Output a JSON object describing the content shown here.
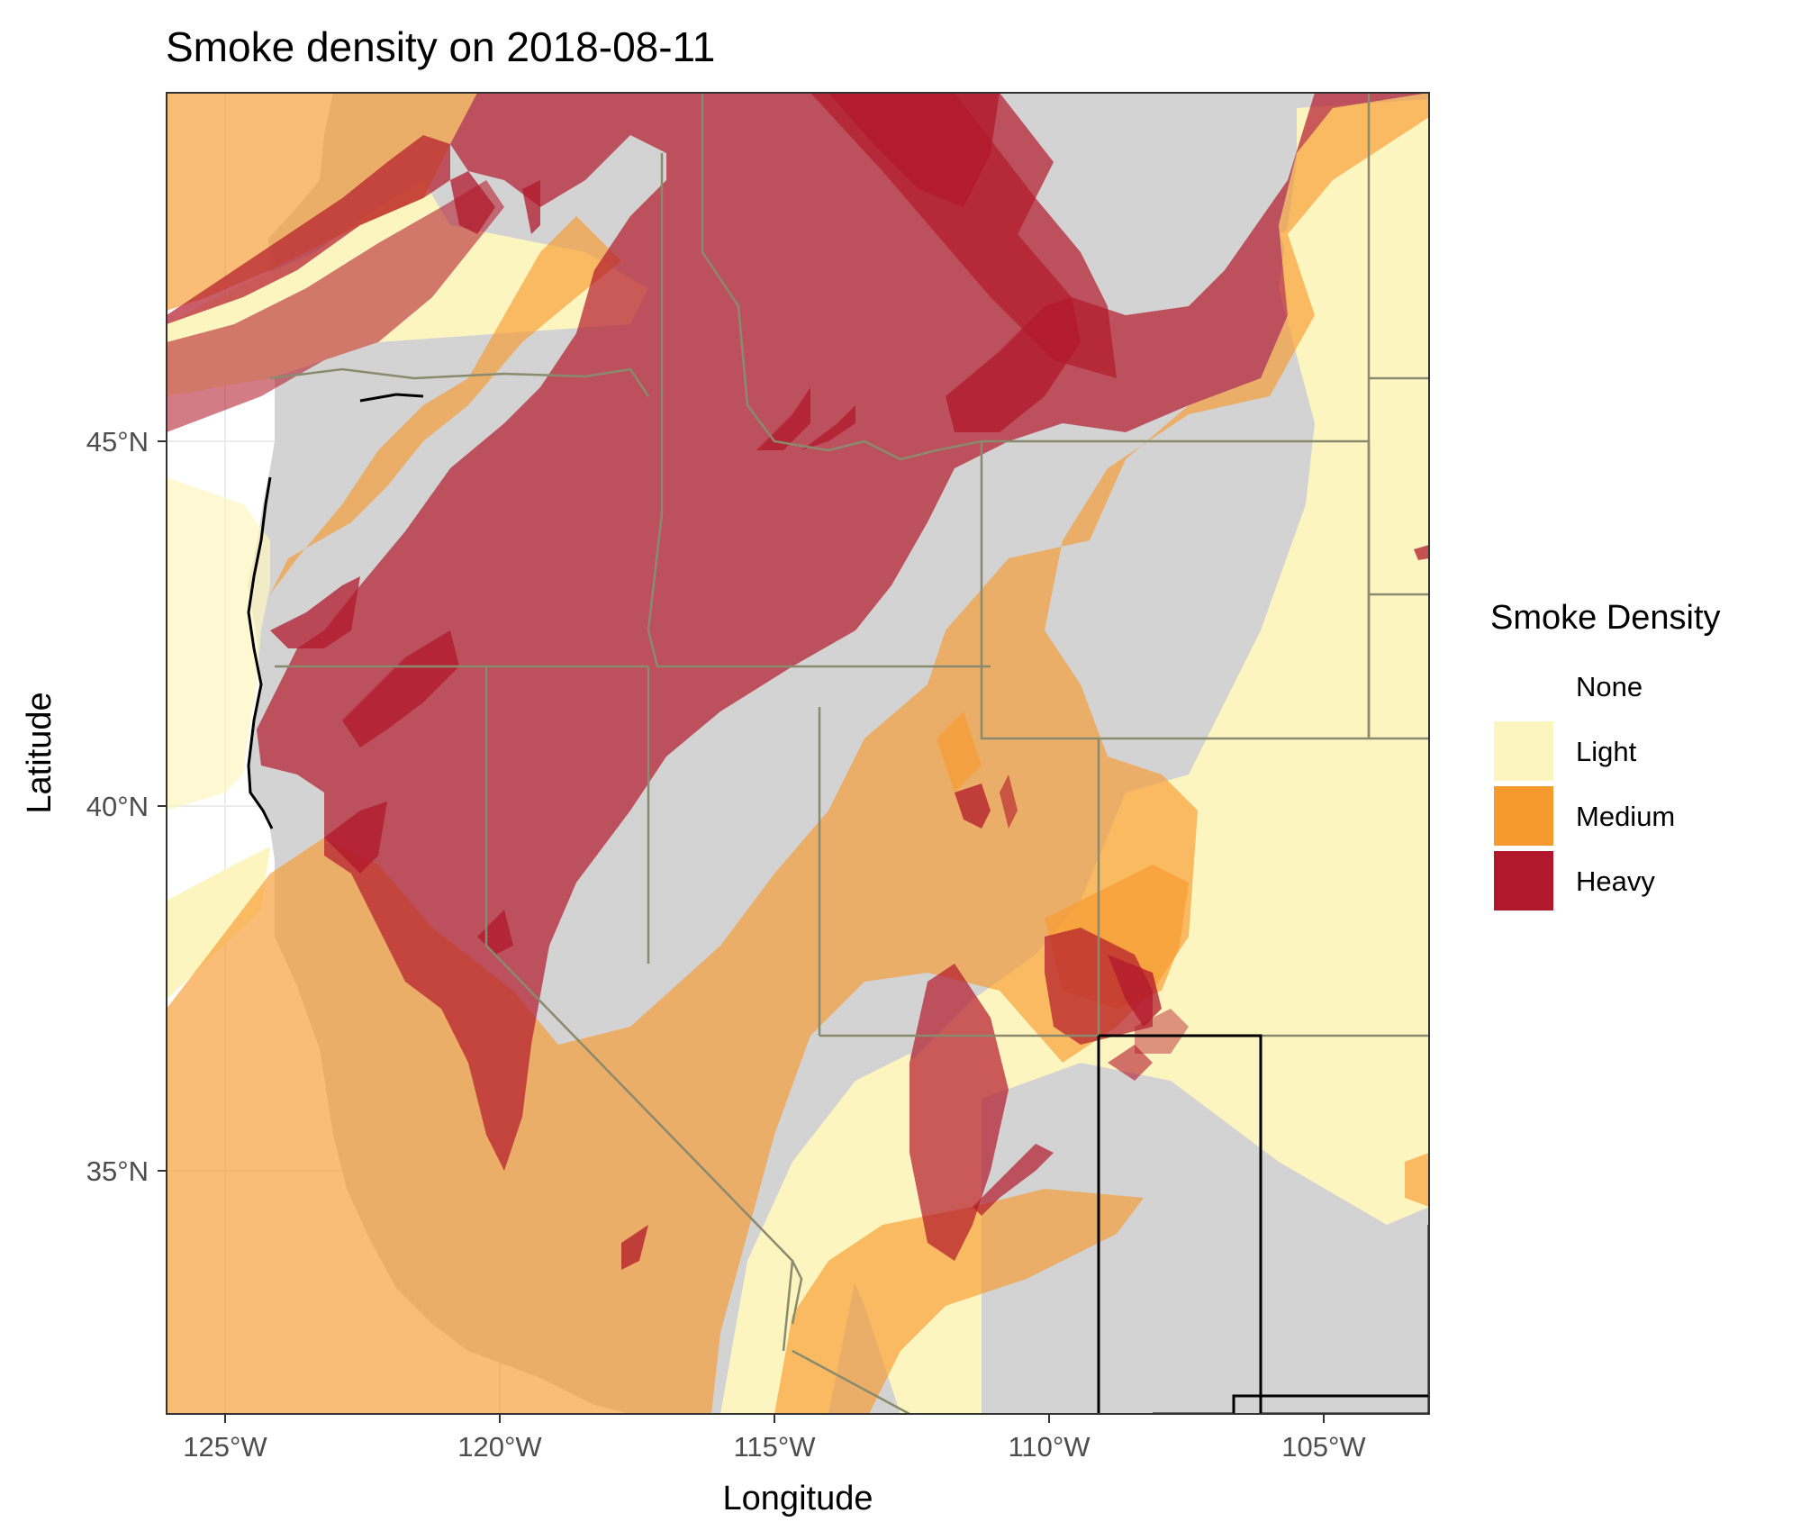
{
  "title": "Smoke density on 2018-08-11",
  "xlabel": "Longitude",
  "ylabel": "Latitude",
  "x_ticks": [
    "125°W",
    "120°W",
    "115°W",
    "110°W",
    "105°W"
  ],
  "y_ticks": [
    "45°N",
    "40°N",
    "35°N"
  ],
  "legend": {
    "title": "Smoke Density",
    "items": [
      {
        "label": "None",
        "color": "#ffffff"
      },
      {
        "label": "Light",
        "color": "#fdf5c0"
      },
      {
        "label": "Medium",
        "color": "#f79a2e"
      },
      {
        "label": "Heavy",
        "color": "#b2182b"
      }
    ]
  },
  "colors": {
    "land": "#d3d3d3",
    "light": "#fdf5c0",
    "medium": "#f79a2e",
    "heavy": "#b2182b",
    "border": "#000000"
  },
  "map_extent": {
    "lon": [
      -126,
      -103
    ],
    "lat": [
      32,
      50
    ]
  },
  "chart_data": {
    "type": "map",
    "title": "Smoke density on 2018-08-11",
    "xlabel": "Longitude",
    "ylabel": "Latitude",
    "xlim": [
      -126,
      -103
    ],
    "ylim": [
      32,
      50
    ],
    "x_ticks": [
      -125,
      -120,
      -115,
      -110,
      -105
    ],
    "y_ticks": [
      35,
      40,
      45
    ],
    "categories": [
      "None",
      "Light",
      "Medium",
      "Heavy"
    ],
    "legend_position": "right"
  }
}
